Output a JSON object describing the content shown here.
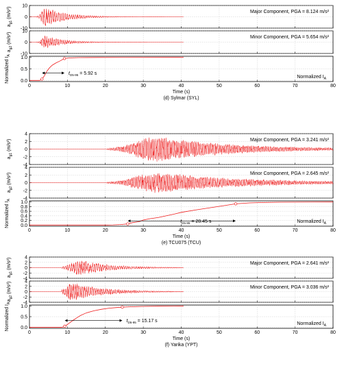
{
  "colors": {
    "trace": "#ee1c1c",
    "axis": "#000000",
    "grid": "#bfbfbf",
    "background": "#ffffff"
  },
  "chart_data": [
    {
      "caption": "(d) Sylmar (SYL)",
      "x_label": "Time (s)",
      "x_range": [
        0,
        80
      ],
      "x_ticks": [
        "0",
        "10",
        "20",
        "30",
        "40",
        "50",
        "60",
        "70",
        "80"
      ],
      "panels": [
        {
          "type": "line",
          "role": "accel",
          "ylabel_main": "a",
          "ylabel_sub": "g1",
          "ylabel_unit": "(m/s²)",
          "y_range": [
            -10,
            10
          ],
          "y_ticks": [
            "-10",
            "0",
            "10"
          ],
          "annotation": "Major Component, PGA = 8.124 m/s²",
          "series": {
            "name": "",
            "duration": 40.6,
            "pga": 8.124,
            "env_amp": 7.8,
            "env_center": 4.1,
            "env_rise": 1.2,
            "env_decay": 5.5,
            "seed": 11,
            "period": 0.55
          }
        },
        {
          "type": "line",
          "role": "accel",
          "ylabel_main": "a",
          "ylabel_sub": "g2",
          "ylabel_unit": "(m/s²)",
          "y_range": [
            -10,
            10
          ],
          "y_ticks": [
            "-10",
            "0",
            "10"
          ],
          "annotation": "Minor Component, PGA = 5.654 m/s²",
          "series": {
            "name": "",
            "duration": 40.6,
            "pga": 5.654,
            "env_amp": 5.4,
            "env_center": 4.2,
            "env_rise": 1.2,
            "env_decay": 5.0,
            "seed": 23,
            "period": 0.5
          }
        },
        {
          "type": "line",
          "role": "arias",
          "ylabel_main": "Normalized I",
          "ylabel_sub": "A",
          "ylabel_unit": "",
          "y_range": [
            -0.05,
            1.05
          ],
          "y_ticks": [
            "0.0",
            "0.5",
            "1.0"
          ],
          "annotation": "Normalized I",
          "annotation_sub": "A",
          "duration_label": "t",
          "duration_sub": "D5-95",
          "duration_value": "= 5.92 s",
          "t5": 3.3,
          "t95": 9.22,
          "series": {
            "name": "",
            "x": [
              0,
              2.6,
              3.0,
              3.4,
              4.0,
              4.6,
              5.3,
              6.0,
              7.0,
              8.0,
              9.2,
              10.5,
              13,
              18,
              25,
              40.6
            ],
            "y": [
              0,
              0,
              0.02,
              0.07,
              0.22,
              0.4,
              0.55,
              0.66,
              0.76,
              0.84,
              0.95,
              0.975,
              0.99,
              0.996,
              0.999,
              1.0
            ]
          }
        }
      ]
    },
    {
      "caption": "(e) TCU075 (TCU)",
      "x_label": "Time (s)",
      "x_range": [
        0,
        80
      ],
      "x_ticks": [
        "0",
        "10",
        "20",
        "30",
        "40",
        "50",
        "60",
        "70",
        "80"
      ],
      "panels": [
        {
          "type": "line",
          "role": "accel",
          "ylabel_main": "a",
          "ylabel_sub": "g1",
          "ylabel_unit": "(m/s²)",
          "y_range": [
            -4,
            4
          ],
          "y_ticks": [
            "-4",
            "-2",
            "0",
            "2",
            "4"
          ],
          "annotation": "Major Component, PGA = 3.241 m/s²",
          "series": {
            "name": "",
            "duration": 80,
            "pga": 3.241,
            "env_amp": 2.2,
            "env_center": 34,
            "env_rise": 8,
            "env_decay": 20,
            "seed": 37,
            "start": 20.5,
            "period": 0.45
          }
        },
        {
          "type": "line",
          "role": "accel",
          "ylabel_main": "a",
          "ylabel_sub": "g2",
          "ylabel_unit": "(m/s²)",
          "y_range": [
            -4,
            4
          ],
          "y_ticks": [
            "-4",
            "-2",
            "0",
            "2",
            "4"
          ],
          "annotation": "Minor Component, PGA = 2.645 m/s²",
          "series": {
            "name": "",
            "duration": 80,
            "pga": 2.645,
            "env_amp": 1.3,
            "env_center": 34,
            "env_rise": 8,
            "env_decay": 22,
            "seed": 41,
            "start": 20.5,
            "period": 0.45
          }
        },
        {
          "type": "line",
          "role": "arias",
          "ylabel_main": "Normalized I",
          "ylabel_sub": "A",
          "ylabel_unit": "",
          "y_range": [
            -0.05,
            1.05
          ],
          "y_ticks": [
            "0.0",
            "0.2",
            "0.4",
            "0.6",
            "0.8",
            "1.0"
          ],
          "annotation": "Normalized I",
          "annotation_sub": "A",
          "duration_label": "t",
          "duration_sub": "D5-95",
          "duration_value": "= 28.45 s",
          "t5": 25.9,
          "t95": 54.35,
          "series": {
            "name": "",
            "x": [
              0,
              20.5,
              22,
              24,
              25.9,
              27,
              29,
              30,
              32,
              34,
              36,
              38,
              40,
              44,
              48,
              52,
              54.3,
              58,
              62,
              66,
              70,
              75,
              80
            ],
            "y": [
              0,
              0,
              0.005,
              0.02,
              0.05,
              0.1,
              0.15,
              0.22,
              0.28,
              0.33,
              0.4,
              0.47,
              0.55,
              0.66,
              0.76,
              0.86,
              0.92,
              0.96,
              0.98,
              0.99,
              0.995,
              0.999,
              1.0
            ]
          }
        }
      ]
    },
    {
      "caption": "(f) Yarika (YPT)",
      "x_label": "Time (s)",
      "x_range": [
        0,
        80
      ],
      "x_ticks": [
        "0",
        "10",
        "20",
        "30",
        "40",
        "50",
        "60",
        "70",
        "80"
      ],
      "panels": [
        {
          "type": "line",
          "role": "accel",
          "ylabel_main": "a",
          "ylabel_sub": "g1",
          "ylabel_unit": "(m/s²)",
          "y_range": [
            -4,
            4
          ],
          "y_ticks": [
            "-4",
            "-2",
            "0",
            "2",
            "4"
          ],
          "annotation": "Major Component, PGA = 2.641 m/s²",
          "series": {
            "name": "",
            "duration": 40.6,
            "pga": 2.641,
            "env_amp": 1.7,
            "env_center": 13.5,
            "env_rise": 3.5,
            "env_decay": 8,
            "seed": 53,
            "start": 8.5,
            "period": 0.55
          }
        },
        {
          "type": "line",
          "role": "accel",
          "ylabel_main": "a",
          "ylabel_sub": "g2",
          "ylabel_unit": "(m/s²)",
          "y_range": [
            -4,
            4
          ],
          "y_ticks": [
            "-4",
            "-2",
            "0",
            "2",
            "4"
          ],
          "annotation": "Minor Component, PGA = 3.036 m/s²",
          "series": {
            "name": "",
            "duration": 40.6,
            "pga": 3.036,
            "env_amp": 1.5,
            "env_center": 11.5,
            "env_rise": 2.5,
            "env_decay": 8,
            "seed": 67,
            "start": 8.5,
            "period": 0.5
          }
        },
        {
          "type": "line",
          "role": "arias",
          "ylabel_main": "Normalized I",
          "ylabel_sub": "A",
          "ylabel_unit": "",
          "y_range": [
            -0.05,
            1.05
          ],
          "y_ticks": [
            "0.0",
            "0.5",
            "1.0"
          ],
          "annotation": "Normalized I",
          "annotation_sub": "A",
          "duration_label": "t",
          "duration_sub": "D5-95",
          "duration_value": "= 15.17 s",
          "t5": 9.3,
          "t95": 24.47,
          "series": {
            "name": "",
            "x": [
              0,
              8.5,
              9.0,
              9.6,
              10.5,
              11.5,
              12.5,
              13.5,
              15,
              17,
              19,
              21,
              23,
              24.5,
              27,
              30,
              34,
              40.6
            ],
            "y": [
              0,
              0,
              0.02,
              0.08,
              0.2,
              0.33,
              0.45,
              0.56,
              0.68,
              0.78,
              0.85,
              0.9,
              0.93,
              0.95,
              0.97,
              0.985,
              0.995,
              1.0
            ]
          }
        }
      ]
    }
  ]
}
